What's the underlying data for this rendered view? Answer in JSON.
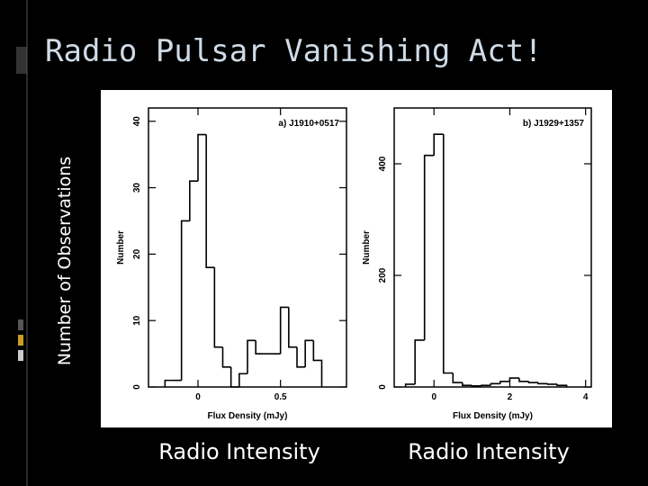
{
  "slide": {
    "title": "Radio Pulsar Vanishing Act!",
    "y_label": "Number of Observations",
    "x_labels": [
      "Radio Intensity",
      "Radio Intensity"
    ]
  },
  "chart_data": [
    {
      "type": "histogram",
      "annotation": "a) J1910+0517",
      "x_label": "Flux Density (mJy)",
      "y_label": "Number",
      "bins": [
        -0.2,
        -0.15,
        -0.1,
        -0.05,
        0,
        0.05,
        0.1,
        0.15,
        0.2,
        0.25,
        0.3,
        0.35,
        0.4,
        0.45,
        0.5,
        0.55,
        0.6,
        0.65,
        0.7,
        0.75
      ],
      "values": [
        1,
        1,
        25,
        31,
        38,
        18,
        6,
        3,
        0,
        2,
        7,
        5,
        5,
        5,
        12,
        6,
        3,
        7,
        4
      ],
      "xlim": [
        -0.3,
        0.9
      ],
      "ylim": [
        0,
        42
      ],
      "xticks": [
        0,
        0.5
      ],
      "yticks": [
        0,
        10,
        20,
        30,
        40
      ],
      "color": "#000000"
    },
    {
      "type": "histogram",
      "annotation": "b) J1929+1357",
      "x_label": "Flux Density (mJy)",
      "y_label": "Number",
      "bins": [
        -0.75,
        -0.5,
        -0.25,
        0,
        0.25,
        0.5,
        0.75,
        1,
        1.25,
        1.5,
        1.75,
        2,
        2.25,
        2.5,
        2.75,
        3,
        3.25,
        3.5
      ],
      "values": [
        5,
        84,
        415,
        453,
        25,
        8,
        3,
        2,
        3,
        6,
        10,
        16,
        10,
        8,
        6,
        5,
        3
      ],
      "xlim": [
        -1.05,
        4.15
      ],
      "ylim": [
        0,
        500
      ],
      "xticks": [
        0,
        2,
        4
      ],
      "yticks": [
        0,
        200,
        400
      ],
      "color": "#000000"
    }
  ]
}
